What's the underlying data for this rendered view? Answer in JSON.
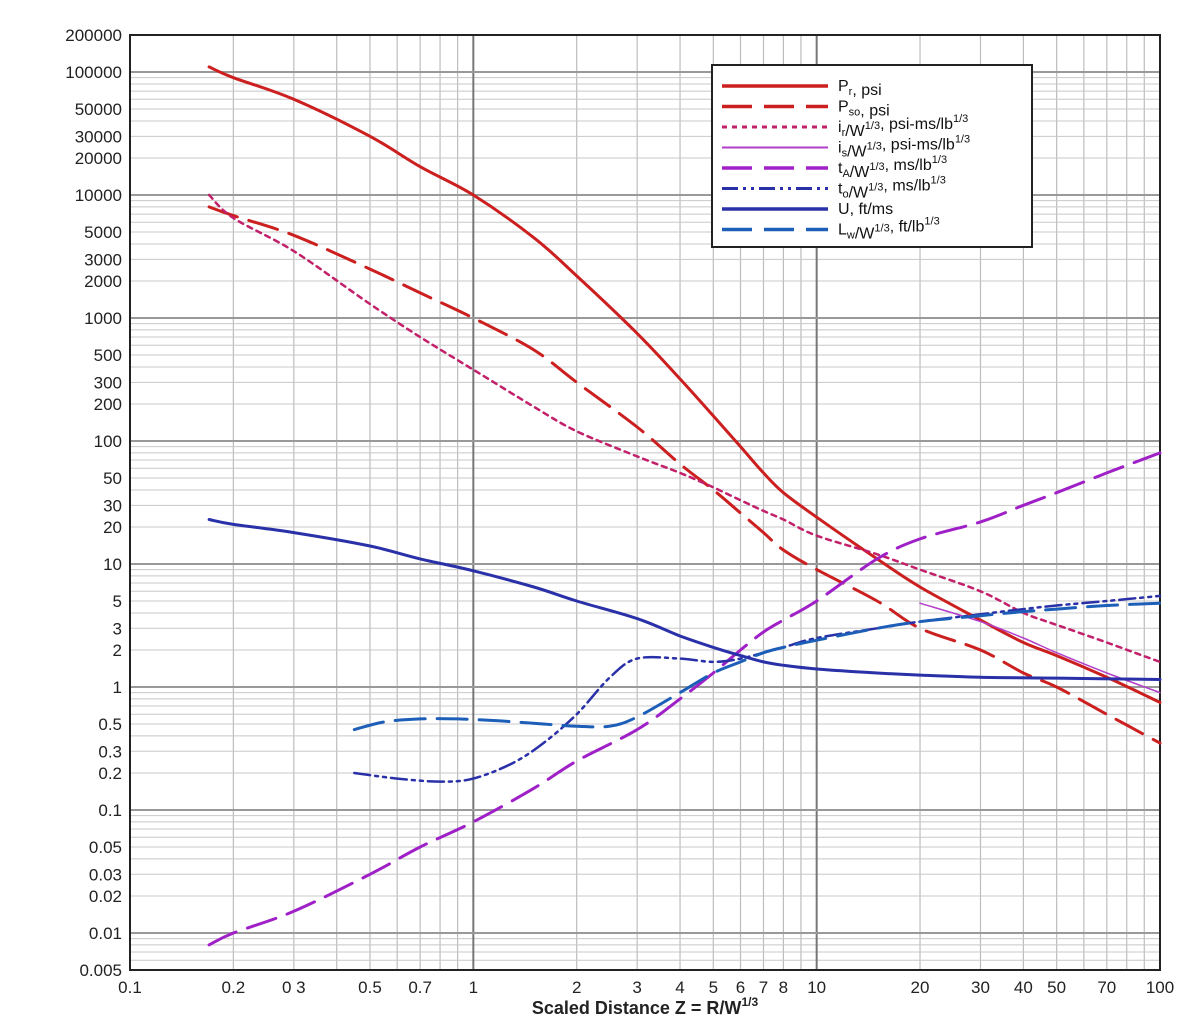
{
  "chart_data": {
    "type": "line",
    "xscale": "log",
    "yscale": "log",
    "xlim": [
      0.1,
      100
    ],
    "ylim": [
      0.005,
      200000
    ],
    "grid": true,
    "legend_position": "top-right",
    "xlabel_main": "Scaled Distance Z = R/W",
    "xlabel_sup": "1/3",
    "x_ticks": [
      {
        "v": 0.1,
        "label": "0.1"
      },
      {
        "v": 0.2,
        "label": "0.2"
      },
      {
        "v": 0.3,
        "label": "0 3"
      },
      {
        "v": 0.5,
        "label": "0.5"
      },
      {
        "v": 0.7,
        "label": "0.7"
      },
      {
        "v": 1,
        "label": "1"
      },
      {
        "v": 2,
        "label": "2"
      },
      {
        "v": 3,
        "label": "3"
      },
      {
        "v": 4,
        "label": "4"
      },
      {
        "v": 5,
        "label": "5"
      },
      {
        "v": 6,
        "label": "6"
      },
      {
        "v": 7,
        "label": "7"
      },
      {
        "v": 8,
        "label": "8"
      },
      {
        "v": 10,
        "label": "10"
      },
      {
        "v": 20,
        "label": "20"
      },
      {
        "v": 30,
        "label": "30"
      },
      {
        "v": 40,
        "label": "40"
      },
      {
        "v": 50,
        "label": "50"
      },
      {
        "v": 70,
        "label": "70"
      },
      {
        "v": 100,
        "label": "100"
      }
    ],
    "y_ticks": [
      {
        "v": 200000,
        "label": "200000"
      },
      {
        "v": 100000,
        "label": "100000"
      },
      {
        "v": 50000,
        "label": "50000"
      },
      {
        "v": 30000,
        "label": "30000"
      },
      {
        "v": 20000,
        "label": "20000"
      },
      {
        "v": 10000,
        "label": "10000"
      },
      {
        "v": 5000,
        "label": "5000"
      },
      {
        "v": 3000,
        "label": "3000"
      },
      {
        "v": 2000,
        "label": "2000"
      },
      {
        "v": 1000,
        "label": "1000"
      },
      {
        "v": 500,
        "label": "500"
      },
      {
        "v": 300,
        "label": "300"
      },
      {
        "v": 200,
        "label": "200"
      },
      {
        "v": 100,
        "label": "100"
      },
      {
        "v": 50,
        "label": "50"
      },
      {
        "v": 30,
        "label": "30"
      },
      {
        "v": 20,
        "label": "20"
      },
      {
        "v": 10,
        "label": "10"
      },
      {
        "v": 5,
        "label": "5"
      },
      {
        "v": 3,
        "label": "3"
      },
      {
        "v": 2,
        "label": "2"
      },
      {
        "v": 1,
        "label": "1"
      },
      {
        "v": 0.5,
        "label": "0.5"
      },
      {
        "v": 0.3,
        "label": "0.3"
      },
      {
        "v": 0.2,
        "label": "0.2"
      },
      {
        "v": 0.1,
        "label": "0.1"
      },
      {
        "v": 0.05,
        "label": "0.05"
      },
      {
        "v": 0.03,
        "label": "0.03"
      },
      {
        "v": 0.02,
        "label": "0.02"
      },
      {
        "v": 0.01,
        "label": "0.01"
      },
      {
        "v": 0.005,
        "label": "0.005"
      }
    ],
    "series": [
      {
        "id": "pr",
        "label_main": "P",
        "label_sub": "r",
        "label_sup": "",
        "label_rest": ", psi",
        "color": "#cc1f1f",
        "dash": "solid",
        "points": [
          [
            0.17,
            110000
          ],
          [
            0.2,
            90000
          ],
          [
            0.3,
            60000
          ],
          [
            0.5,
            30000
          ],
          [
            0.7,
            17000
          ],
          [
            1,
            10000
          ],
          [
            1.5,
            4500
          ],
          [
            2,
            2200
          ],
          [
            3,
            750
          ],
          [
            4,
            320
          ],
          [
            5,
            160
          ],
          [
            6,
            90
          ],
          [
            7,
            55
          ],
          [
            8,
            38
          ],
          [
            10,
            24
          ],
          [
            15,
            11
          ],
          [
            20,
            6.5
          ],
          [
            30,
            3.5
          ],
          [
            40,
            2.3
          ],
          [
            50,
            1.8
          ],
          [
            70,
            1.2
          ],
          [
            100,
            0.75
          ]
        ]
      },
      {
        "id": "pso",
        "label_main": "P",
        "label_sub": "so",
        "label_sup": "",
        "label_rest": ", psi",
        "color": "#cc1f1f",
        "dash": "longdash",
        "points": [
          [
            0.17,
            8000
          ],
          [
            0.2,
            6800
          ],
          [
            0.3,
            4700
          ],
          [
            0.5,
            2500
          ],
          [
            0.7,
            1600
          ],
          [
            1,
            1000
          ],
          [
            1.5,
            550
          ],
          [
            2,
            300
          ],
          [
            3,
            130
          ],
          [
            4,
            65
          ],
          [
            5,
            40
          ],
          [
            6,
            26
          ],
          [
            7,
            18
          ],
          [
            8,
            13
          ],
          [
            10,
            9
          ],
          [
            15,
            5
          ],
          [
            20,
            3
          ],
          [
            30,
            2
          ],
          [
            40,
            1.3
          ],
          [
            50,
            1
          ],
          [
            70,
            0.6
          ],
          [
            100,
            0.35
          ]
        ]
      },
      {
        "id": "ir",
        "label_main": "i",
        "label_sub": "r",
        "label_sup": "",
        "label_rest": "/W^1/3, psi-ms/lb^1/3",
        "color": "#c2206a",
        "dash": "dot",
        "points": [
          [
            0.17,
            10000
          ],
          [
            0.2,
            6500
          ],
          [
            0.3,
            3500
          ],
          [
            0.5,
            1300
          ],
          [
            0.7,
            700
          ],
          [
            1,
            380
          ],
          [
            1.5,
            190
          ],
          [
            2,
            120
          ],
          [
            3,
            75
          ],
          [
            4,
            55
          ],
          [
            5,
            42
          ],
          [
            6,
            33
          ],
          [
            7,
            27
          ],
          [
            8,
            23
          ],
          [
            10,
            17
          ],
          [
            15,
            12
          ],
          [
            20,
            9
          ],
          [
            30,
            6
          ],
          [
            40,
            4
          ],
          [
            50,
            3.2
          ],
          [
            70,
            2.3
          ],
          [
            100,
            1.6
          ]
        ]
      },
      {
        "id": "is",
        "label_main": "i",
        "label_sub": "s",
        "label_sup": "",
        "label_rest": "/W^1/3, psi-ms/lb^1/3",
        "color": "#b23ec9",
        "dash": "thin",
        "points": [
          [
            20,
            4.8
          ],
          [
            30,
            3.4
          ],
          [
            40,
            2.5
          ],
          [
            50,
            1.9
          ],
          [
            70,
            1.3
          ],
          [
            100,
            0.9
          ]
        ]
      },
      {
        "id": "ta",
        "label_main": "t",
        "label_sub": "A",
        "label_sup": "",
        "label_rest": "/W^1/3, ms/lb^1/3",
        "color": "#a020c8",
        "dash": "longdash",
        "points": [
          [
            0.17,
            0.008
          ],
          [
            0.2,
            0.01
          ],
          [
            0.3,
            0.015
          ],
          [
            0.5,
            0.03
          ],
          [
            0.7,
            0.05
          ],
          [
            1,
            0.08
          ],
          [
            1.5,
            0.15
          ],
          [
            2,
            0.25
          ],
          [
            3,
            0.45
          ],
          [
            4,
            0.8
          ],
          [
            5,
            1.3
          ],
          [
            6,
            2
          ],
          [
            7,
            2.8
          ],
          [
            8,
            3.5
          ],
          [
            10,
            5
          ],
          [
            15,
            11
          ],
          [
            20,
            16
          ],
          [
            30,
            22
          ],
          [
            40,
            30
          ],
          [
            50,
            38
          ],
          [
            70,
            55
          ],
          [
            100,
            80
          ]
        ]
      },
      {
        "id": "to",
        "label_main": "t",
        "label_sub": "o",
        "label_sup": "",
        "label_rest": "/W^1/3, ms/lb^1/3",
        "color": "#2a30a8",
        "dash": "dashdotdot",
        "points": [
          [
            0.45,
            0.2
          ],
          [
            0.6,
            0.18
          ],
          [
            0.8,
            0.17
          ],
          [
            1,
            0.18
          ],
          [
            1.3,
            0.24
          ],
          [
            1.6,
            0.35
          ],
          [
            2,
            0.6
          ],
          [
            2.5,
            1.2
          ],
          [
            3,
            1.7
          ],
          [
            4,
            1.7
          ],
          [
            5,
            1.6
          ],
          [
            6,
            1.7
          ],
          [
            7,
            1.9
          ],
          [
            8,
            2.1
          ],
          [
            10,
            2.5
          ],
          [
            15,
            3
          ],
          [
            20,
            3.4
          ],
          [
            30,
            3.9
          ],
          [
            40,
            4.3
          ],
          [
            50,
            4.6
          ],
          [
            70,
            5
          ],
          [
            100,
            5.5
          ]
        ]
      },
      {
        "id": "u",
        "label_main": "U",
        "label_sub": "",
        "label_sup": "",
        "label_rest": ", ft/ms",
        "color": "#2a30a8",
        "dash": "solid",
        "points": [
          [
            0.17,
            23
          ],
          [
            0.2,
            21
          ],
          [
            0.3,
            18
          ],
          [
            0.5,
            14
          ],
          [
            0.7,
            11
          ],
          [
            1,
            8.8
          ],
          [
            1.5,
            6.5
          ],
          [
            2,
            5
          ],
          [
            3,
            3.6
          ],
          [
            4,
            2.6
          ],
          [
            5,
            2.1
          ],
          [
            6,
            1.8
          ],
          [
            7,
            1.6
          ],
          [
            8,
            1.5
          ],
          [
            10,
            1.4
          ],
          [
            15,
            1.3
          ],
          [
            20,
            1.25
          ],
          [
            30,
            1.2
          ],
          [
            50,
            1.18
          ],
          [
            100,
            1.15
          ]
        ]
      },
      {
        "id": "lw",
        "label_main": "L",
        "label_sub": "w",
        "label_sup": "",
        "label_rest": "/W^1/3, ft/lb^1/3",
        "color": "#1d5fb8",
        "dash": "longdash",
        "points": [
          [
            0.45,
            0.45
          ],
          [
            0.55,
            0.52
          ],
          [
            0.7,
            0.55
          ],
          [
            0.9,
            0.55
          ],
          [
            1.2,
            0.53
          ],
          [
            1.6,
            0.5
          ],
          [
            2,
            0.48
          ],
          [
            2.5,
            0.48
          ],
          [
            3,
            0.57
          ],
          [
            4,
            0.9
          ],
          [
            5,
            1.3
          ],
          [
            6,
            1.6
          ],
          [
            7,
            1.9
          ],
          [
            8,
            2.1
          ],
          [
            10,
            2.4
          ],
          [
            15,
            3
          ],
          [
            20,
            3.4
          ],
          [
            30,
            3.8
          ],
          [
            40,
            4.1
          ],
          [
            50,
            4.3
          ],
          [
            70,
            4.6
          ],
          [
            100,
            4.8
          ]
        ]
      }
    ]
  }
}
